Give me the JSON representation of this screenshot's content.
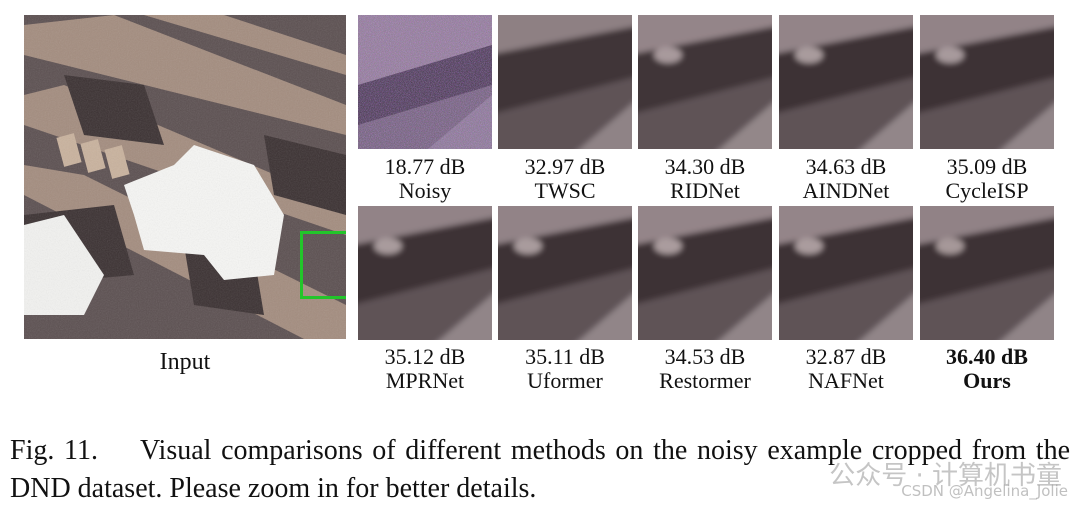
{
  "input_label": "Input",
  "top_row": [
    {
      "psnr": "18.77 dB",
      "method": "Noisy"
    },
    {
      "psnr": "32.97 dB",
      "method": "TWSC"
    },
    {
      "psnr": "34.30 dB",
      "method": "RIDNet"
    },
    {
      "psnr": "34.63 dB",
      "method": "AINDNet"
    },
    {
      "psnr": "35.09 dB",
      "method": "CycleISP"
    }
  ],
  "bottom_row": [
    {
      "psnr": "35.12 dB",
      "method": "MPRNet"
    },
    {
      "psnr": "35.11 dB",
      "method": "Uformer"
    },
    {
      "psnr": "34.53 dB",
      "method": "Restormer"
    },
    {
      "psnr": "32.87 dB",
      "method": "NAFNet"
    },
    {
      "psnr": "36.40 dB",
      "method": "Ours"
    }
  ],
  "caption": {
    "number": "Fig. 11.",
    "text": "Visual comparisons of different methods on the noisy example cropped from the DND dataset. Please zoom in for better details."
  },
  "watermark": {
    "line1": "公众号 · 计算机书童",
    "line2": "CSDN @Angelina_Jolie"
  },
  "colors": {
    "zoom_box": "#22c52a"
  }
}
